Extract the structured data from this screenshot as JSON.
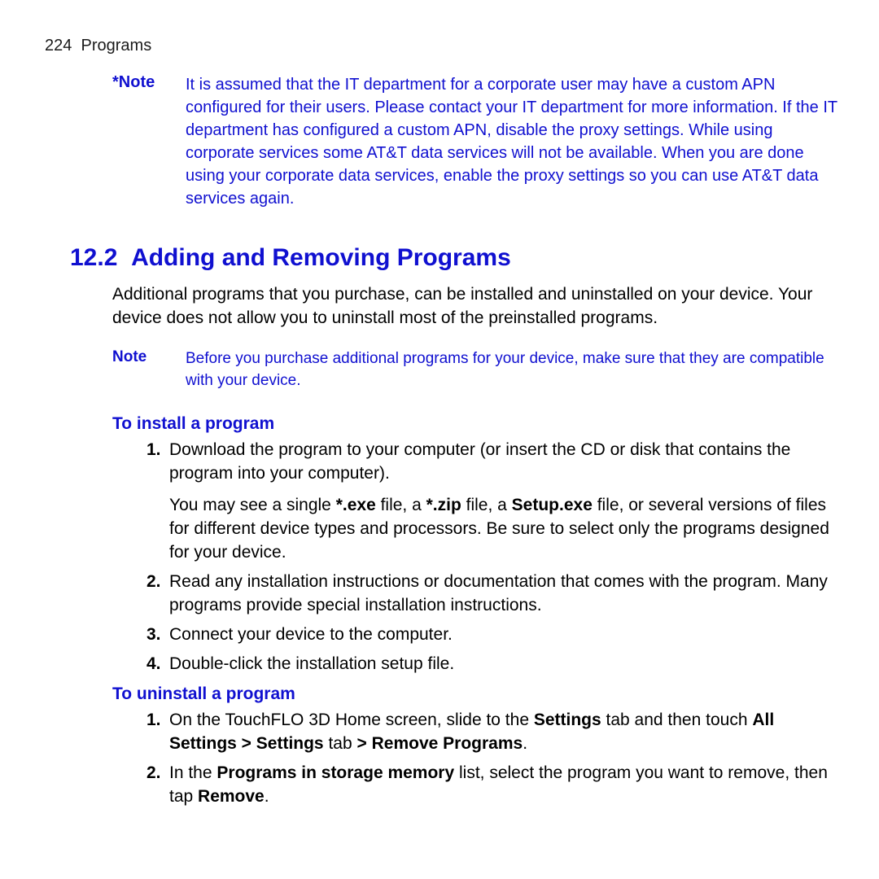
{
  "header": {
    "pageNumber": "224",
    "chapter": "Programs"
  },
  "note1": {
    "label": "*Note",
    "text": "It is assumed that the IT department for a corporate user may have a custom APN configured for their users. Please contact your IT department for more information. If the IT department has configured a custom APN, disable the proxy settings. While using corporate services some AT&T data services will not be available. When you are done using your corporate data services, enable the proxy settings so you can use AT&T data services again."
  },
  "section": {
    "number": "12.2",
    "title": "Adding and Removing Programs"
  },
  "intro": "Additional programs that you purchase, can be installed and uninstalled on your device. Your device does not allow you to uninstall most of the preinstalled programs.",
  "note2": {
    "label": "Note",
    "text": "Before you purchase additional programs for your device, make sure that they are compatible with your device."
  },
  "install": {
    "heading": "To install a program",
    "items": [
      {
        "num": "1.",
        "textA": "Download the program to your computer (or insert the CD or disk that contains the program into your computer).",
        "textB_pre": "You may see a single ",
        "b1": "*.exe",
        "mid1": " file, a ",
        "b2": "*.zip",
        "mid2": " file, a ",
        "b3": "Setup.exe",
        "textB_post": " file, or several versions of files for different device types and processors. Be sure to select only the programs designed for your device."
      },
      {
        "num": "2.",
        "text": "Read any installation instructions or documentation that comes with the program. Many programs provide special installation instructions."
      },
      {
        "num": "3.",
        "text": "Connect your device to the computer."
      },
      {
        "num": "4.",
        "text": "Double-click the installation setup file."
      }
    ]
  },
  "uninstall": {
    "heading": "To uninstall a program",
    "items": [
      {
        "num": "1.",
        "pre": "On the TouchFLO 3D Home screen, slide to the ",
        "b1": "Settings",
        "mid1": " tab and then touch ",
        "b2": "All Settings > Settings",
        "mid2": " tab ",
        "b3": "> Remove Programs",
        "post": "."
      },
      {
        "num": "2.",
        "pre": "In the ",
        "b1": "Programs in storage memory",
        "mid": " list, select the program you want to remove, then tap ",
        "b2": "Remove",
        "post": "."
      }
    ]
  }
}
